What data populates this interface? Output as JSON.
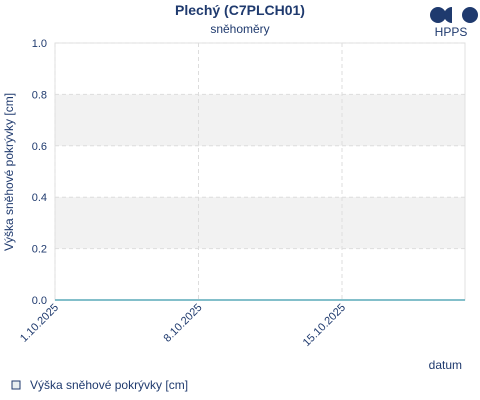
{
  "chart_data": {
    "type": "line",
    "title": "Plechý (C7PLCH01)",
    "subtitle": "sněhoměry",
    "logo": "HPPS",
    "y_label": "Výška sněhové pokrývky [cm]",
    "x_label": "datum",
    "x": [
      "2025-10-01",
      "2025-10-21"
    ],
    "series": [
      {
        "name": "Výška sněhové pokrývky [cm]",
        "color": "#5aaab8",
        "values": [
          0,
          0
        ]
      }
    ],
    "xlim": [
      "2025-10-01",
      "2025-10-21"
    ],
    "xticks": [
      {
        "value": "2025-10-01",
        "label": "1.10.2025"
      },
      {
        "value": "2025-10-08",
        "label": "8.10.2025"
      },
      {
        "value": "2025-10-15",
        "label": "15.10.2025"
      }
    ],
    "ylim": [
      0,
      1
    ],
    "yticks": [
      {
        "value": 0,
        "label": "0.0"
      },
      {
        "value": 0.2,
        "label": "0.2"
      },
      {
        "value": 0.4,
        "label": "0.4"
      },
      {
        "value": 0.6,
        "label": "0.6"
      },
      {
        "value": 0.8,
        "label": "0.8"
      },
      {
        "value": 1,
        "label": "1.0"
      }
    ],
    "grid": true
  }
}
